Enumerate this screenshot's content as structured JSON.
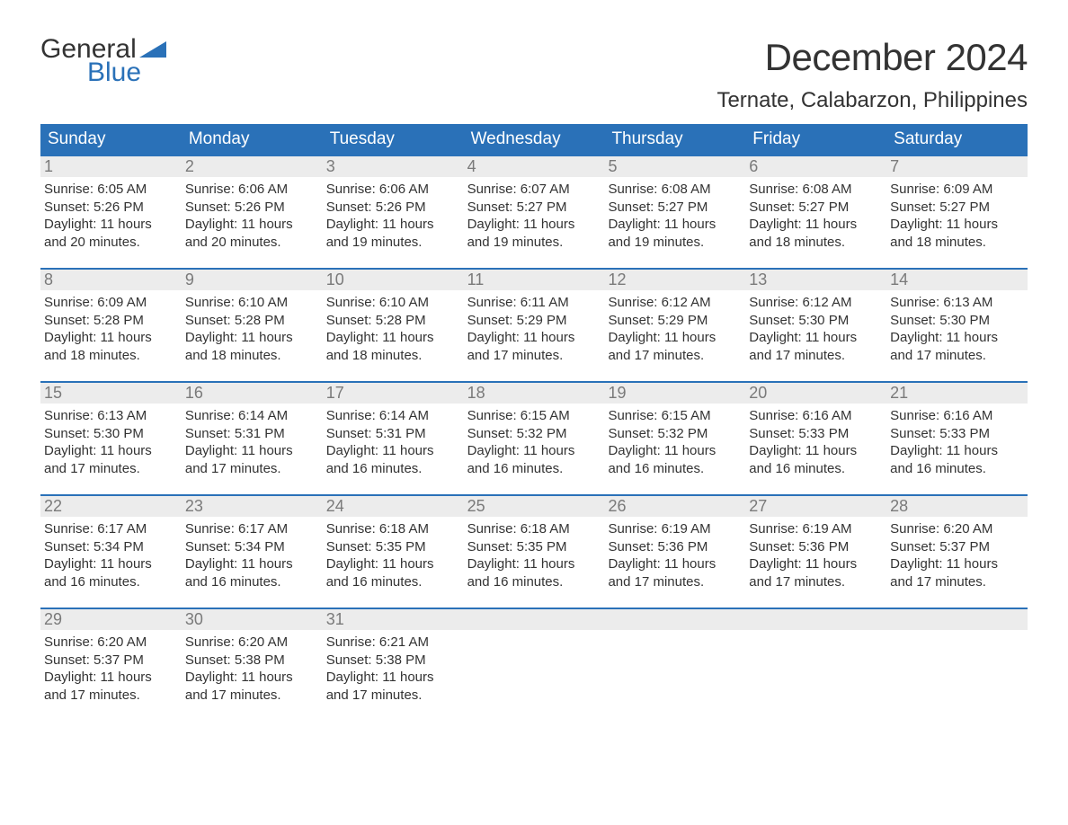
{
  "brand": {
    "word1": "General",
    "word2": "Blue",
    "flag_color": "#2a71b8"
  },
  "header": {
    "month_title": "December 2024",
    "location": "Ternate, Calabarzon, Philippines"
  },
  "colors": {
    "header_bg": "#2a71b8",
    "header_text": "#ffffff",
    "daynum_bg": "#ececec",
    "daynum_text": "#7a7a7a",
    "body_text": "#333333",
    "page_bg": "#ffffff",
    "week_border": "#2a71b8"
  },
  "typography": {
    "month_title_fontsize": 42,
    "location_fontsize": 24,
    "dow_fontsize": 19,
    "daynum_fontsize": 18,
    "body_fontsize": 15,
    "font_family": "Arial"
  },
  "layout": {
    "columns": 7,
    "rows": 5
  },
  "days_of_week": [
    "Sunday",
    "Monday",
    "Tuesday",
    "Wednesday",
    "Thursday",
    "Friday",
    "Saturday"
  ],
  "weeks": [
    [
      {
        "num": "1",
        "sunrise": "Sunrise: 6:05 AM",
        "sunset": "Sunset: 5:26 PM",
        "day1": "Daylight: 11 hours",
        "day2": "and 20 minutes."
      },
      {
        "num": "2",
        "sunrise": "Sunrise: 6:06 AM",
        "sunset": "Sunset: 5:26 PM",
        "day1": "Daylight: 11 hours",
        "day2": "and 20 minutes."
      },
      {
        "num": "3",
        "sunrise": "Sunrise: 6:06 AM",
        "sunset": "Sunset: 5:26 PM",
        "day1": "Daylight: 11 hours",
        "day2": "and 19 minutes."
      },
      {
        "num": "4",
        "sunrise": "Sunrise: 6:07 AM",
        "sunset": "Sunset: 5:27 PM",
        "day1": "Daylight: 11 hours",
        "day2": "and 19 minutes."
      },
      {
        "num": "5",
        "sunrise": "Sunrise: 6:08 AM",
        "sunset": "Sunset: 5:27 PM",
        "day1": "Daylight: 11 hours",
        "day2": "and 19 minutes."
      },
      {
        "num": "6",
        "sunrise": "Sunrise: 6:08 AM",
        "sunset": "Sunset: 5:27 PM",
        "day1": "Daylight: 11 hours",
        "day2": "and 18 minutes."
      },
      {
        "num": "7",
        "sunrise": "Sunrise: 6:09 AM",
        "sunset": "Sunset: 5:27 PM",
        "day1": "Daylight: 11 hours",
        "day2": "and 18 minutes."
      }
    ],
    [
      {
        "num": "8",
        "sunrise": "Sunrise: 6:09 AM",
        "sunset": "Sunset: 5:28 PM",
        "day1": "Daylight: 11 hours",
        "day2": "and 18 minutes."
      },
      {
        "num": "9",
        "sunrise": "Sunrise: 6:10 AM",
        "sunset": "Sunset: 5:28 PM",
        "day1": "Daylight: 11 hours",
        "day2": "and 18 minutes."
      },
      {
        "num": "10",
        "sunrise": "Sunrise: 6:10 AM",
        "sunset": "Sunset: 5:28 PM",
        "day1": "Daylight: 11 hours",
        "day2": "and 18 minutes."
      },
      {
        "num": "11",
        "sunrise": "Sunrise: 6:11 AM",
        "sunset": "Sunset: 5:29 PM",
        "day1": "Daylight: 11 hours",
        "day2": "and 17 minutes."
      },
      {
        "num": "12",
        "sunrise": "Sunrise: 6:12 AM",
        "sunset": "Sunset: 5:29 PM",
        "day1": "Daylight: 11 hours",
        "day2": "and 17 minutes."
      },
      {
        "num": "13",
        "sunrise": "Sunrise: 6:12 AM",
        "sunset": "Sunset: 5:30 PM",
        "day1": "Daylight: 11 hours",
        "day2": "and 17 minutes."
      },
      {
        "num": "14",
        "sunrise": "Sunrise: 6:13 AM",
        "sunset": "Sunset: 5:30 PM",
        "day1": "Daylight: 11 hours",
        "day2": "and 17 minutes."
      }
    ],
    [
      {
        "num": "15",
        "sunrise": "Sunrise: 6:13 AM",
        "sunset": "Sunset: 5:30 PM",
        "day1": "Daylight: 11 hours",
        "day2": "and 17 minutes."
      },
      {
        "num": "16",
        "sunrise": "Sunrise: 6:14 AM",
        "sunset": "Sunset: 5:31 PM",
        "day1": "Daylight: 11 hours",
        "day2": "and 17 minutes."
      },
      {
        "num": "17",
        "sunrise": "Sunrise: 6:14 AM",
        "sunset": "Sunset: 5:31 PM",
        "day1": "Daylight: 11 hours",
        "day2": "and 16 minutes."
      },
      {
        "num": "18",
        "sunrise": "Sunrise: 6:15 AM",
        "sunset": "Sunset: 5:32 PM",
        "day1": "Daylight: 11 hours",
        "day2": "and 16 minutes."
      },
      {
        "num": "19",
        "sunrise": "Sunrise: 6:15 AM",
        "sunset": "Sunset: 5:32 PM",
        "day1": "Daylight: 11 hours",
        "day2": "and 16 minutes."
      },
      {
        "num": "20",
        "sunrise": "Sunrise: 6:16 AM",
        "sunset": "Sunset: 5:33 PM",
        "day1": "Daylight: 11 hours",
        "day2": "and 16 minutes."
      },
      {
        "num": "21",
        "sunrise": "Sunrise: 6:16 AM",
        "sunset": "Sunset: 5:33 PM",
        "day1": "Daylight: 11 hours",
        "day2": "and 16 minutes."
      }
    ],
    [
      {
        "num": "22",
        "sunrise": "Sunrise: 6:17 AM",
        "sunset": "Sunset: 5:34 PM",
        "day1": "Daylight: 11 hours",
        "day2": "and 16 minutes."
      },
      {
        "num": "23",
        "sunrise": "Sunrise: 6:17 AM",
        "sunset": "Sunset: 5:34 PM",
        "day1": "Daylight: 11 hours",
        "day2": "and 16 minutes."
      },
      {
        "num": "24",
        "sunrise": "Sunrise: 6:18 AM",
        "sunset": "Sunset: 5:35 PM",
        "day1": "Daylight: 11 hours",
        "day2": "and 16 minutes."
      },
      {
        "num": "25",
        "sunrise": "Sunrise: 6:18 AM",
        "sunset": "Sunset: 5:35 PM",
        "day1": "Daylight: 11 hours",
        "day2": "and 16 minutes."
      },
      {
        "num": "26",
        "sunrise": "Sunrise: 6:19 AM",
        "sunset": "Sunset: 5:36 PM",
        "day1": "Daylight: 11 hours",
        "day2": "and 17 minutes."
      },
      {
        "num": "27",
        "sunrise": "Sunrise: 6:19 AM",
        "sunset": "Sunset: 5:36 PM",
        "day1": "Daylight: 11 hours",
        "day2": "and 17 minutes."
      },
      {
        "num": "28",
        "sunrise": "Sunrise: 6:20 AM",
        "sunset": "Sunset: 5:37 PM",
        "day1": "Daylight: 11 hours",
        "day2": "and 17 minutes."
      }
    ],
    [
      {
        "num": "29",
        "sunrise": "Sunrise: 6:20 AM",
        "sunset": "Sunset: 5:37 PM",
        "day1": "Daylight: 11 hours",
        "day2": "and 17 minutes."
      },
      {
        "num": "30",
        "sunrise": "Sunrise: 6:20 AM",
        "sunset": "Sunset: 5:38 PM",
        "day1": "Daylight: 11 hours",
        "day2": "and 17 minutes."
      },
      {
        "num": "31",
        "sunrise": "Sunrise: 6:21 AM",
        "sunset": "Sunset: 5:38 PM",
        "day1": "Daylight: 11 hours",
        "day2": "and 17 minutes."
      },
      {
        "empty": true
      },
      {
        "empty": true
      },
      {
        "empty": true
      },
      {
        "empty": true
      }
    ]
  ]
}
